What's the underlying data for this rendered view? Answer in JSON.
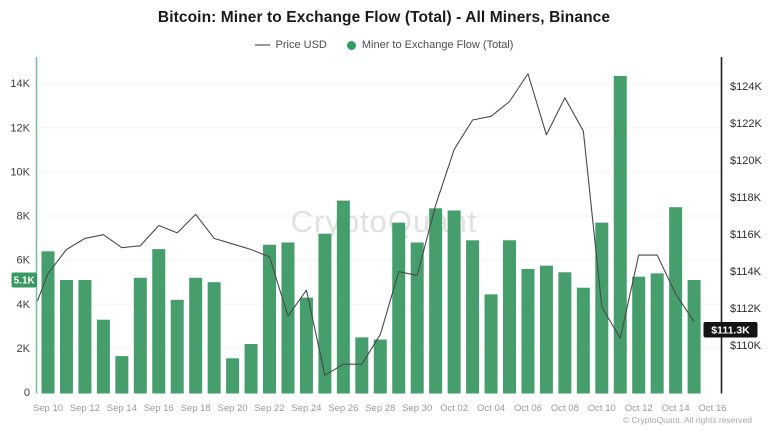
{
  "header": {
    "title": "Bitcoin: Miner to Exchange Flow (Total) - All Miners, Binance"
  },
  "legend": {
    "price_label": "Price USD",
    "flow_label": "Miner to Exchange Flow (Total)"
  },
  "watermark": "CryptoQuant",
  "footer": {
    "copyright": "© CryptoQuant. All rights reserved"
  },
  "badges": {
    "current_flow": "5.1K",
    "current_price": "$111.3K"
  },
  "colors": {
    "bar": "#459e6c",
    "badge_flow_bg": "#389861",
    "badge_price_bg": "#141414",
    "price_line": "#4a4a4a",
    "left_axis": "#7dc29c",
    "right_axis": "#1f1f1f",
    "grid": "#f3f3f3",
    "watermark": "#e1e1e1",
    "left_tick_text": "#3d3d3d",
    "right_tick_text": "#2b2b2b",
    "x_tick_text": "#9a9a9a"
  },
  "chart_data": {
    "type": "combo",
    "categories": [
      "Sep 10",
      "Sep 11",
      "Sep 12",
      "Sep 13",
      "Sep 14",
      "Sep 15",
      "Sep 16",
      "Sep 17",
      "Sep 18",
      "Sep 19",
      "Sep 20",
      "Sep 21",
      "Sep 22",
      "Sep 23",
      "Sep 24",
      "Sep 25",
      "Sep 26",
      "Sep 27",
      "Sep 28",
      "Sep 29",
      "Sep 30",
      "Oct 01",
      "Oct 02",
      "Oct 03",
      "Oct 04",
      "Oct 05",
      "Oct 06",
      "Oct 07",
      "Oct 08",
      "Oct 09",
      "Oct 10",
      "Oct 11",
      "Oct 12",
      "Oct 13",
      "Oct 14",
      "Oct 15"
    ],
    "series": [
      {
        "name": "Miner to Exchange Flow (Total)",
        "type": "bar",
        "axis": "left",
        "unit": "K BTC",
        "values": [
          6.4,
          5.1,
          5.1,
          3.3,
          1.65,
          5.2,
          6.5,
          4.2,
          5.2,
          5.0,
          1.55,
          2.2,
          6.7,
          6.8,
          4.3,
          7.2,
          8.7,
          2.5,
          2.4,
          7.7,
          6.8,
          8.35,
          8.25,
          6.9,
          4.45,
          6.9,
          5.6,
          5.75,
          5.45,
          4.75,
          7.7,
          14.35,
          5.25,
          5.4,
          8.4,
          5.1
        ]
      },
      {
        "name": "Price USD",
        "type": "line",
        "axis": "right",
        "unit": "K USD",
        "values": [
          113.9,
          115.2,
          115.8,
          116.0,
          115.3,
          115.4,
          116.5,
          116.1,
          117.1,
          115.8,
          115.5,
          115.2,
          114.8,
          111.6,
          113.0,
          108.4,
          109.0,
          109.0,
          110.6,
          114.0,
          113.8,
          117.6,
          120.6,
          122.2,
          122.4,
          123.2,
          124.7,
          121.4,
          123.4,
          121.6,
          112.1,
          110.4,
          114.9,
          114.9,
          112.8,
          111.3
        ],
        "edge_start_k": 112.4
      }
    ],
    "left_axis": {
      "ticks": [
        "0",
        "2K",
        "4K",
        "6K",
        "8K",
        "10K",
        "12K",
        "14K"
      ],
      "tick_values_k": [
        0,
        2,
        4,
        6,
        8,
        10,
        12,
        14
      ],
      "current_value_k": 5.1
    },
    "right_axis": {
      "ticks": [
        "$110K",
        "$112K",
        "$114K",
        "$116K",
        "$118K",
        "$120K",
        "$122K",
        "$124K"
      ],
      "tick_values_k": [
        110,
        112,
        114,
        116,
        118,
        120,
        122,
        124
      ],
      "current_value_k": 111.3
    },
    "x_tick_labels": [
      "Sep 10",
      "Sep 12",
      "Sep 14",
      "Sep 16",
      "Sep 18",
      "Sep 20",
      "Sep 22",
      "Sep 24",
      "Sep 26",
      "Sep 28",
      "Sep 30",
      "Oct 02",
      "Oct 04",
      "Oct 06",
      "Oct 08",
      "Oct 10",
      "Oct 12",
      "Oct 14",
      "Oct 16"
    ],
    "grid": "horizontal-faint",
    "legend_position": "top-center"
  }
}
